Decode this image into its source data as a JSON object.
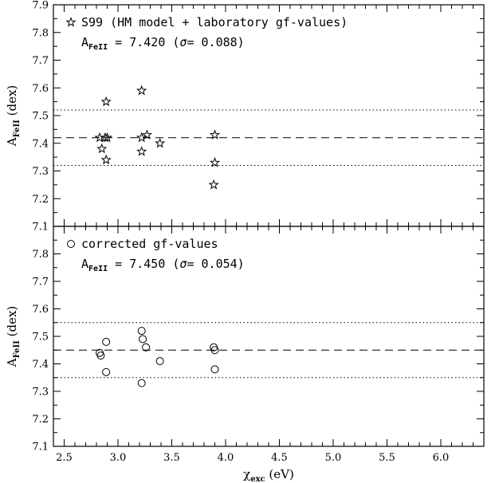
{
  "chart_data": [
    {
      "type": "scatter",
      "legend": "S99 (HM model + laboratory gf-values)",
      "stat": {
        "symbol": "A",
        "subscript": "FeII",
        "text": " = 7.420 (",
        "sigma": "σ",
        "sigma_text": "= 0.088)"
      },
      "marker": "star",
      "ylabel": {
        "main": "A",
        "sub": "FeII",
        "rest": " (dex)"
      },
      "xlim": [
        2.4,
        6.4
      ],
      "ylim": [
        7.1,
        7.9
      ],
      "yticks": [
        "7.1",
        "7.2",
        "7.3",
        "7.4",
        "7.5",
        "7.6",
        "7.7",
        "7.8",
        "7.9"
      ],
      "show_xtick_labels": false,
      "mean": 7.42,
      "band": [
        7.32,
        7.52
      ],
      "points": [
        {
          "x": 2.83,
          "y": 7.42
        },
        {
          "x": 2.85,
          "y": 7.38
        },
        {
          "x": 2.88,
          "y": 7.42
        },
        {
          "x": 2.9,
          "y": 7.42
        },
        {
          "x": 2.89,
          "y": 7.55
        },
        {
          "x": 2.89,
          "y": 7.34
        },
        {
          "x": 3.22,
          "y": 7.59
        },
        {
          "x": 3.22,
          "y": 7.42
        },
        {
          "x": 3.22,
          "y": 7.37
        },
        {
          "x": 3.27,
          "y": 7.43
        },
        {
          "x": 3.39,
          "y": 7.4
        },
        {
          "x": 3.9,
          "y": 7.43
        },
        {
          "x": 3.9,
          "y": 7.33
        },
        {
          "x": 3.89,
          "y": 7.25
        }
      ]
    },
    {
      "type": "scatter",
      "legend": "corrected gf-values",
      "stat": {
        "symbol": "A",
        "subscript": "FeII",
        "text": " = 7.450 (",
        "sigma": "σ",
        "sigma_text": "= 0.054)"
      },
      "marker": "circle",
      "ylabel": {
        "main": "A",
        "sub": "FeII",
        "rest": " (dex)"
      },
      "xlabel": {
        "main": "χ",
        "sub": "exc",
        "rest": " (eV)"
      },
      "xlim": [
        2.4,
        6.4
      ],
      "ylim": [
        7.1,
        7.9
      ],
      "xticks": [
        "2.5",
        "3.0",
        "3.5",
        "4.0",
        "4.5",
        "5.0",
        "5.5",
        "6.0"
      ],
      "yticks": [
        "7.1",
        "7.2",
        "7.3",
        "7.4",
        "7.5",
        "7.6",
        "7.7",
        "7.8"
      ],
      "show_xtick_labels": true,
      "mean": 7.45,
      "band": [
        7.35,
        7.55
      ],
      "points": [
        {
          "x": 2.83,
          "y": 7.44
        },
        {
          "x": 2.84,
          "y": 7.43
        },
        {
          "x": 2.89,
          "y": 7.48
        },
        {
          "x": 2.89,
          "y": 7.37
        },
        {
          "x": 3.22,
          "y": 7.52
        },
        {
          "x": 3.23,
          "y": 7.49
        },
        {
          "x": 3.26,
          "y": 7.46
        },
        {
          "x": 3.22,
          "y": 7.33
        },
        {
          "x": 3.39,
          "y": 7.41
        },
        {
          "x": 3.89,
          "y": 7.46
        },
        {
          "x": 3.9,
          "y": 7.45
        },
        {
          "x": 3.9,
          "y": 7.38
        }
      ]
    }
  ]
}
